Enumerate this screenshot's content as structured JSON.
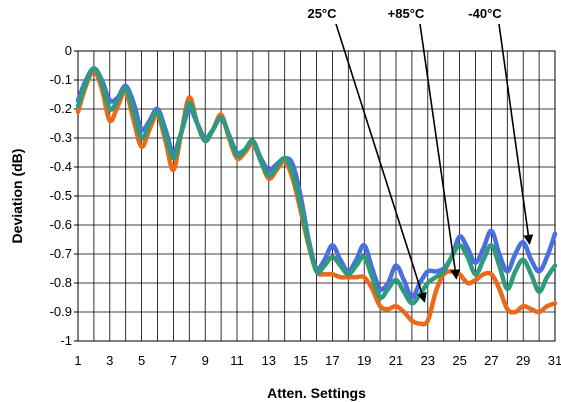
{
  "chart_data": {
    "type": "line",
    "title": "",
    "xlabel": "Atten. Settings",
    "ylabel": "Deviation (dB)",
    "xlim": [
      1,
      31
    ],
    "ylim": [
      -1,
      0
    ],
    "grid": true,
    "x_ticks": [
      "1",
      "3",
      "5",
      "7",
      "9",
      "11",
      "13",
      "15",
      "17",
      "19",
      "21",
      "23",
      "25",
      "27",
      "29",
      "31"
    ],
    "y_ticks": [
      "0",
      "-0.1",
      "-0.2",
      "-0.3",
      "-0.4",
      "-0.5",
      "-0.6",
      "-0.7",
      "-0.8",
      "-0.9",
      "-1"
    ],
    "series": [
      {
        "name": "-40°C",
        "color": "#4a6fe0",
        "points": [
          [
            1,
            -0.17
          ],
          [
            1.5,
            -0.1
          ],
          [
            2,
            -0.06
          ],
          [
            2.5,
            -0.1
          ],
          [
            3,
            -0.17
          ],
          [
            3.5,
            -0.16
          ],
          [
            4,
            -0.12
          ],
          [
            4.5,
            -0.18
          ],
          [
            5,
            -0.27
          ],
          [
            5.5,
            -0.24
          ],
          [
            6,
            -0.2
          ],
          [
            6.5,
            -0.27
          ],
          [
            7,
            -0.35
          ],
          [
            7.5,
            -0.28
          ],
          [
            8,
            -0.2
          ],
          [
            8.5,
            -0.25
          ],
          [
            9,
            -0.3
          ],
          [
            9.5,
            -0.27
          ],
          [
            10,
            -0.23
          ],
          [
            10.5,
            -0.29
          ],
          [
            11,
            -0.35
          ],
          [
            11.5,
            -0.34
          ],
          [
            12,
            -0.31
          ],
          [
            12.5,
            -0.37
          ],
          [
            13,
            -0.41
          ],
          [
            13.5,
            -0.39
          ],
          [
            14,
            -0.37
          ],
          [
            14.5,
            -0.39
          ],
          [
            15,
            -0.5
          ],
          [
            15.5,
            -0.65
          ],
          [
            16,
            -0.75
          ],
          [
            16.5,
            -0.72
          ],
          [
            17,
            -0.67
          ],
          [
            17.5,
            -0.72
          ],
          [
            18,
            -0.76
          ],
          [
            18.5,
            -0.72
          ],
          [
            19,
            -0.67
          ],
          [
            19.5,
            -0.75
          ],
          [
            20,
            -0.82
          ],
          [
            20.5,
            -0.8
          ],
          [
            21,
            -0.74
          ],
          [
            21.5,
            -0.79
          ],
          [
            22,
            -0.85
          ],
          [
            22.5,
            -0.8
          ],
          [
            23,
            -0.76
          ],
          [
            23.5,
            -0.76
          ],
          [
            24,
            -0.75
          ],
          [
            24.5,
            -0.71
          ],
          [
            25,
            -0.64
          ],
          [
            25.5,
            -0.68
          ],
          [
            26,
            -0.73
          ],
          [
            26.5,
            -0.68
          ],
          [
            27,
            -0.62
          ],
          [
            27.5,
            -0.7
          ],
          [
            28,
            -0.76
          ],
          [
            28.5,
            -0.7
          ],
          [
            29,
            -0.66
          ],
          [
            29.5,
            -0.72
          ],
          [
            30,
            -0.76
          ],
          [
            30.5,
            -0.71
          ],
          [
            31,
            -0.63
          ]
        ]
      },
      {
        "name": "+85°C",
        "color": "#e86a1a",
        "points": [
          [
            1,
            -0.21
          ],
          [
            1.5,
            -0.12
          ],
          [
            2,
            -0.07
          ],
          [
            2.5,
            -0.13
          ],
          [
            3,
            -0.24
          ],
          [
            3.5,
            -0.19
          ],
          [
            4,
            -0.14
          ],
          [
            4.5,
            -0.24
          ],
          [
            5,
            -0.33
          ],
          [
            5.5,
            -0.27
          ],
          [
            6,
            -0.22
          ],
          [
            6.5,
            -0.31
          ],
          [
            7,
            -0.41
          ],
          [
            7.5,
            -0.28
          ],
          [
            8,
            -0.16
          ],
          [
            8.5,
            -0.25
          ],
          [
            9,
            -0.31
          ],
          [
            9.5,
            -0.27
          ],
          [
            10,
            -0.22
          ],
          [
            10.5,
            -0.3
          ],
          [
            11,
            -0.37
          ],
          [
            11.5,
            -0.35
          ],
          [
            12,
            -0.32
          ],
          [
            12.5,
            -0.38
          ],
          [
            13,
            -0.44
          ],
          [
            13.5,
            -0.41
          ],
          [
            14,
            -0.38
          ],
          [
            14.5,
            -0.44
          ],
          [
            15,
            -0.55
          ],
          [
            15.5,
            -0.67
          ],
          [
            16,
            -0.76
          ],
          [
            16.5,
            -0.77
          ],
          [
            17,
            -0.77
          ],
          [
            17.5,
            -0.78
          ],
          [
            18,
            -0.78
          ],
          [
            18.5,
            -0.78
          ],
          [
            19,
            -0.78
          ],
          [
            19.5,
            -0.82
          ],
          [
            20,
            -0.88
          ],
          [
            20.5,
            -0.89
          ],
          [
            21,
            -0.88
          ],
          [
            21.5,
            -0.9
          ],
          [
            22,
            -0.93
          ],
          [
            22.5,
            -0.94
          ],
          [
            23,
            -0.93
          ],
          [
            23.5,
            -0.83
          ],
          [
            24,
            -0.77
          ],
          [
            24.5,
            -0.76
          ],
          [
            25,
            -0.77
          ],
          [
            25.5,
            -0.8
          ],
          [
            26,
            -0.79
          ],
          [
            26.5,
            -0.77
          ],
          [
            27,
            -0.77
          ],
          [
            27.5,
            -0.82
          ],
          [
            28,
            -0.89
          ],
          [
            28.5,
            -0.9
          ],
          [
            29,
            -0.88
          ],
          [
            29.5,
            -0.89
          ],
          [
            30,
            -0.9
          ],
          [
            30.5,
            -0.88
          ],
          [
            31,
            -0.87
          ]
        ]
      },
      {
        "name": "25°C",
        "color": "#2e9a7e",
        "points": [
          [
            1,
            -0.19
          ],
          [
            1.5,
            -0.11
          ],
          [
            2,
            -0.06
          ],
          [
            2.5,
            -0.11
          ],
          [
            3,
            -0.2
          ],
          [
            3.5,
            -0.17
          ],
          [
            4,
            -0.13
          ],
          [
            4.5,
            -0.21
          ],
          [
            5,
            -0.3
          ],
          [
            5.5,
            -0.25
          ],
          [
            6,
            -0.21
          ],
          [
            6.5,
            -0.29
          ],
          [
            7,
            -0.37
          ],
          [
            7.5,
            -0.28
          ],
          [
            8,
            -0.18
          ],
          [
            8.5,
            -0.25
          ],
          [
            9,
            -0.31
          ],
          [
            9.5,
            -0.27
          ],
          [
            10,
            -0.23
          ],
          [
            10.5,
            -0.29
          ],
          [
            11,
            -0.36
          ],
          [
            11.5,
            -0.34
          ],
          [
            12,
            -0.31
          ],
          [
            12.5,
            -0.38
          ],
          [
            13,
            -0.43
          ],
          [
            13.5,
            -0.4
          ],
          [
            14,
            -0.37
          ],
          [
            14.5,
            -0.42
          ],
          [
            15,
            -0.53
          ],
          [
            15.5,
            -0.66
          ],
          [
            16,
            -0.76
          ],
          [
            16.5,
            -0.74
          ],
          [
            17,
            -0.71
          ],
          [
            17.5,
            -0.74
          ],
          [
            18,
            -0.77
          ],
          [
            18.5,
            -0.74
          ],
          [
            19,
            -0.71
          ],
          [
            19.5,
            -0.78
          ],
          [
            20,
            -0.85
          ],
          [
            20.5,
            -0.82
          ],
          [
            21,
            -0.79
          ],
          [
            21.5,
            -0.83
          ],
          [
            22,
            -0.87
          ],
          [
            22.5,
            -0.84
          ],
          [
            23,
            -0.8
          ],
          [
            23.5,
            -0.78
          ],
          [
            24,
            -0.76
          ],
          [
            24.5,
            -0.71
          ],
          [
            25,
            -0.67
          ],
          [
            25.5,
            -0.71
          ],
          [
            26,
            -0.77
          ],
          [
            26.5,
            -0.72
          ],
          [
            27,
            -0.67
          ],
          [
            27.5,
            -0.74
          ],
          [
            28,
            -0.82
          ],
          [
            28.5,
            -0.76
          ],
          [
            29,
            -0.72
          ],
          [
            29.5,
            -0.77
          ],
          [
            30,
            -0.83
          ],
          [
            30.5,
            -0.78
          ],
          [
            31,
            -0.74
          ]
        ]
      }
    ],
    "annotations": [
      {
        "label": "25°C",
        "target": [
          22.8,
          -0.865
        ]
      },
      {
        "label": "+85°C",
        "target": [
          24.8,
          -0.785
        ]
      },
      {
        "label": "-40°C",
        "target": [
          29.4,
          -0.665
        ]
      }
    ]
  }
}
